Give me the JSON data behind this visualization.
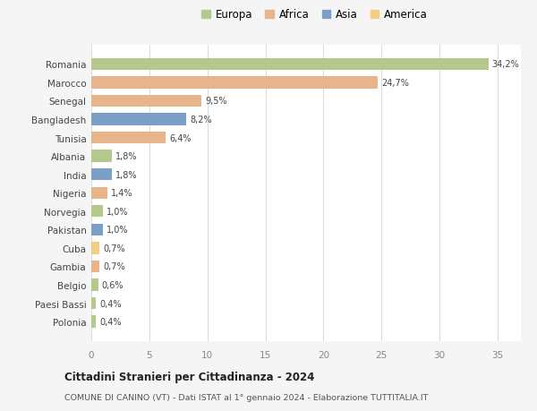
{
  "countries": [
    "Romania",
    "Marocco",
    "Senegal",
    "Bangladesh",
    "Tunisia",
    "Albania",
    "India",
    "Nigeria",
    "Norvegia",
    "Pakistan",
    "Cuba",
    "Gambia",
    "Belgio",
    "Paesi Bassi",
    "Polonia"
  ],
  "values": [
    34.2,
    24.7,
    9.5,
    8.2,
    6.4,
    1.8,
    1.8,
    1.4,
    1.0,
    1.0,
    0.7,
    0.7,
    0.6,
    0.4,
    0.4
  ],
  "labels": [
    "34,2%",
    "24,7%",
    "9,5%",
    "8,2%",
    "6,4%",
    "1,8%",
    "1,8%",
    "1,4%",
    "1,0%",
    "1,0%",
    "0,7%",
    "0,7%",
    "0,6%",
    "0,4%",
    "0,4%"
  ],
  "continents": [
    "Europa",
    "Africa",
    "Africa",
    "Asia",
    "Africa",
    "Europa",
    "Asia",
    "Africa",
    "Europa",
    "Asia",
    "America",
    "Africa",
    "Europa",
    "Europa",
    "Europa"
  ],
  "continent_colors": {
    "Europa": "#b5c98e",
    "Africa": "#e8b48a",
    "Asia": "#7b9fc7",
    "America": "#f0d080"
  },
  "legend_order": [
    "Europa",
    "Africa",
    "Asia",
    "America"
  ],
  "bg_color": "#f5f5f5",
  "plot_bg_color": "#ffffff",
  "grid_color": "#dddddd",
  "title": "Cittadini Stranieri per Cittadinanza - 2024",
  "subtitle": "COMUNE DI CANINO (VT) - Dati ISTAT al 1° gennaio 2024 - Elaborazione TUTTITALIA.IT",
  "xlim": [
    0,
    37
  ],
  "xticks": [
    0,
    5,
    10,
    15,
    20,
    25,
    30,
    35
  ]
}
